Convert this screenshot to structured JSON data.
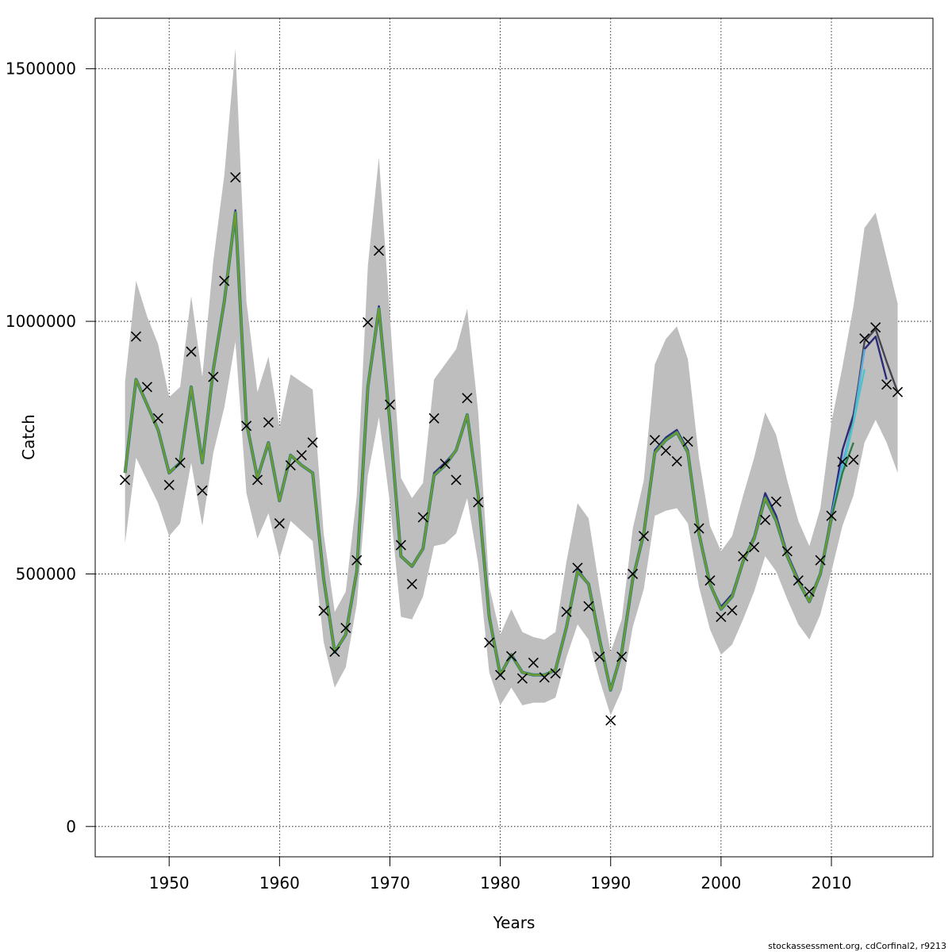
{
  "chart_data": {
    "type": "line",
    "xlabel": "Years",
    "ylabel": "Catch",
    "credit": "stockassessment.org, cdCorfinal2, r9213",
    "xlim": [
      1943.3,
      2019.2
    ],
    "ylim": [
      -60000,
      1600000
    ],
    "x_ticks": [
      1950,
      1960,
      1970,
      1980,
      1990,
      2000,
      2010
    ],
    "y_ticks": [
      0,
      500000,
      1000000,
      1500000
    ],
    "y_tick_labels": [
      "0",
      "500000",
      "1000000",
      "1500000"
    ],
    "grid": true,
    "colors": {
      "band": "#bebebe",
      "main": "#6e9b2a",
      "main_under": "#2e7d8c",
      "retro_2015": "#45454f",
      "retro_2014": "#2b2b78",
      "retro_2013": "#5aa9e0",
      "retro_2012": "#2e7d46",
      "retro_2011": "#4ec3c8",
      "observed": "#000000"
    },
    "observed": {
      "x": [
        1946,
        1947,
        1948,
        1949,
        1950,
        1951,
        1952,
        1953,
        1954,
        1955,
        1956,
        1957,
        1958,
        1959,
        1960,
        1961,
        1962,
        1963,
        1964,
        1965,
        1966,
        1967,
        1968,
        1969,
        1970,
        1971,
        1972,
        1973,
        1974,
        1975,
        1976,
        1977,
        1978,
        1979,
        1980,
        1981,
        1982,
        1983,
        1984,
        1985,
        1986,
        1987,
        1988,
        1989,
        1990,
        1991,
        1992,
        1993,
        1994,
        1995,
        1996,
        1997,
        1998,
        1999,
        2000,
        2001,
        2002,
        2003,
        2004,
        2005,
        2006,
        2007,
        2008,
        2009,
        2010,
        2011,
        2012,
        2013,
        2014,
        2015,
        2016
      ],
      "y": [
        686000,
        970000,
        870000,
        808000,
        676000,
        720000,
        940000,
        665000,
        890000,
        1080000,
        1285000,
        793000,
        686000,
        800000,
        600000,
        715000,
        735000,
        760000,
        427000,
        346000,
        393000,
        527000,
        998000,
        1140000,
        835000,
        557000,
        480000,
        612000,
        808000,
        718000,
        686000,
        848000,
        642000,
        364000,
        300000,
        337000,
        293000,
        324000,
        295000,
        303000,
        425000,
        512000,
        436000,
        336000,
        210000,
        336000,
        500000,
        575000,
        765000,
        744000,
        723000,
        762000,
        590000,
        487000,
        415000,
        428000,
        535000,
        553000,
        607000,
        643000,
        545000,
        487000,
        465000,
        527000,
        615000,
        722000,
        726000,
        966000,
        988000,
        875000,
        860000
      ]
    },
    "band": {
      "x": [
        1946,
        1947,
        1948,
        1949,
        1950,
        1951,
        1952,
        1953,
        1954,
        1955,
        1956,
        1957,
        1958,
        1959,
        1960,
        1961,
        1962,
        1963,
        1964,
        1965,
        1966,
        1967,
        1968,
        1969,
        1970,
        1971,
        1972,
        1973,
        1974,
        1975,
        1976,
        1977,
        1978,
        1979,
        1980,
        1981,
        1982,
        1983,
        1984,
        1985,
        1986,
        1987,
        1988,
        1989,
        1990,
        1991,
        1992,
        1993,
        1994,
        1995,
        1996,
        1997,
        1998,
        1999,
        2000,
        2001,
        2002,
        2003,
        2004,
        2005,
        2006,
        2007,
        2008,
        2009,
        2010,
        2011,
        2012,
        2013,
        2014,
        2015,
        2016
      ],
      "upper": [
        880000,
        1080000,
        1010000,
        955000,
        850000,
        870000,
        1050000,
        890000,
        1120000,
        1290000,
        1540000,
        1040000,
        860000,
        930000,
        790000,
        895000,
        880000,
        865000,
        580000,
        425000,
        465000,
        655000,
        1110000,
        1325000,
        1010000,
        690000,
        650000,
        680000,
        885000,
        915000,
        945000,
        1025000,
        820000,
        475000,
        380000,
        430000,
        385000,
        375000,
        370000,
        385000,
        525000,
        640000,
        610000,
        470000,
        345000,
        410000,
        590000,
        685000,
        915000,
        965000,
        990000,
        925000,
        730000,
        595000,
        545000,
        575000,
        655000,
        730000,
        820000,
        775000,
        685000,
        605000,
        555000,
        630000,
        800000,
        910000,
        1030000,
        1185000,
        1215000,
        1125000,
        1035000
      ],
      "lower": [
        560000,
        730000,
        685000,
        640000,
        575000,
        600000,
        720000,
        595000,
        740000,
        830000,
        960000,
        660000,
        570000,
        620000,
        530000,
        605000,
        585000,
        565000,
        365000,
        275000,
        315000,
        440000,
        695000,
        810000,
        640000,
        415000,
        410000,
        455000,
        555000,
        560000,
        580000,
        650000,
        520000,
        305000,
        240000,
        275000,
        240000,
        245000,
        245000,
        255000,
        335000,
        400000,
        370000,
        290000,
        220000,
        270000,
        395000,
        470000,
        615000,
        625000,
        630000,
        600000,
        475000,
        390000,
        340000,
        360000,
        410000,
        465000,
        535000,
        505000,
        450000,
        400000,
        370000,
        420000,
        505000,
        595000,
        655000,
        760000,
        805000,
        760000,
        700000
      ]
    },
    "series": [
      {
        "x": [
          1946,
          1947,
          1948,
          1949,
          1950,
          1951,
          1952,
          1953,
          1954,
          1955,
          1956,
          1957,
          1958,
          1959,
          1960,
          1961,
          1962,
          1963,
          1964,
          1965,
          1966,
          1967,
          1968,
          1969,
          1970,
          1971,
          1972,
          1973,
          1974,
          1975,
          1976,
          1977,
          1978,
          1979,
          1980,
          1981,
          1982,
          1983,
          1984,
          1985,
          1986,
          1987,
          1988,
          1989,
          1990,
          1991,
          1992,
          1993,
          1994,
          1995,
          1996,
          1997,
          1998,
          1999,
          2000,
          2001,
          2002,
          2003,
          2004,
          2005,
          2006,
          2007,
          2008,
          2009,
          2010,
          2011,
          2012,
          2013,
          2014,
          2015
        ],
        "values": [
          705000,
          885000,
          835000,
          785000,
          700000,
          720000,
          870000,
          720000,
          905000,
          1040000,
          1220000,
          800000,
          690000,
          760000,
          645000,
          735000,
          715000,
          700000,
          490000,
          345000,
          380000,
          505000,
          870000,
          1030000,
          800000,
          535000,
          515000,
          550000,
          700000,
          720000,
          745000,
          815000,
          655000,
          415000,
          300000,
          340000,
          305000,
          300000,
          300000,
          310000,
          395000,
          510000,
          480000,
          370000,
          270000,
          345000,
          490000,
          580000,
          745000,
          770000,
          785000,
          745000,
          580000,
          480000,
          435000,
          460000,
          525000,
          575000,
          660000,
          615000,
          540000,
          490000,
          445000,
          500000,
          620000,
          745000,
          815000,
          945000,
          970000,
          885000
        ],
        "color_key": "retro_2014"
      },
      {
        "x": [
          2010,
          2011,
          2012,
          2013,
          2014,
          2015,
          2016
        ],
        "values": [
          615000,
          715000,
          805000,
          960000,
          985000,
          920000,
          860000
        ],
        "color_key": "retro_2015"
      },
      {
        "x": [
          2010,
          2011,
          2012,
          2013
        ],
        "values": [
          615000,
          720000,
          800000,
          945000
        ],
        "color_key": "retro_2013"
      },
      {
        "x": [
          2010,
          2011,
          2012,
          2013
        ],
        "values": [
          610000,
          705000,
          800000,
          905000
        ],
        "color_key": "retro_2011"
      },
      {
        "x": [
          1946,
          1947,
          1948,
          1949,
          1950,
          1951,
          1952,
          1953,
          1954,
          1955,
          1956,
          1957,
          1958,
          1959,
          1960,
          1961,
          1962,
          1963,
          1964,
          1965,
          1966,
          1967,
          1968,
          1969,
          1970,
          1971,
          1972,
          1973,
          1974,
          1975,
          1976,
          1977,
          1978,
          1979,
          1980,
          1981,
          1982,
          1983,
          1984,
          1985,
          1986,
          1987,
          1988,
          1989,
          1990,
          1991,
          1992,
          1993,
          1994,
          1995,
          1996,
          1997,
          1998,
          1999,
          2000,
          2001,
          2002,
          2003,
          2004,
          2005,
          2006,
          2007,
          2008,
          2009,
          2010,
          2011,
          2012
        ],
        "values": [
          700000,
          885000,
          835000,
          785000,
          700000,
          720000,
          870000,
          720000,
          905000,
          1040000,
          1215000,
          800000,
          690000,
          760000,
          645000,
          735000,
          715000,
          700000,
          490000,
          345000,
          380000,
          505000,
          870000,
          1025000,
          800000,
          535000,
          515000,
          550000,
          695000,
          715000,
          745000,
          815000,
          655000,
          415000,
          300000,
          340000,
          305000,
          300000,
          300000,
          310000,
          395000,
          505000,
          480000,
          370000,
          270000,
          345000,
          490000,
          580000,
          740000,
          765000,
          780000,
          740000,
          580000,
          480000,
          430000,
          455000,
          525000,
          570000,
          650000,
          605000,
          535000,
          485000,
          445000,
          500000,
          610000,
          700000,
          760000
        ],
        "color_key": "retro_2012"
      },
      {
        "x": [
          1946,
          1947,
          1948,
          1949,
          1950,
          1951,
          1952,
          1953,
          1954,
          1955,
          1956,
          1957,
          1958,
          1959,
          1960,
          1961,
          1962,
          1963,
          1964,
          1965,
          1966,
          1967,
          1968,
          1969,
          1970,
          1971,
          1972,
          1973,
          1974,
          1975,
          1976,
          1977,
          1978,
          1979,
          1980,
          1981,
          1982,
          1983,
          1984,
          1985,
          1986,
          1987,
          1988,
          1989,
          1990,
          1991,
          1992,
          1993,
          1994,
          1995,
          1996,
          1997,
          1998,
          1999,
          2000,
          2001,
          2002,
          2003,
          2004,
          2005,
          2006,
          2007,
          2008,
          2009,
          2010
        ],
        "values": [
          700000,
          885000,
          835000,
          785000,
          700000,
          720000,
          870000,
          720000,
          905000,
          1040000,
          1215000,
          800000,
          690000,
          760000,
          645000,
          735000,
          715000,
          700000,
          490000,
          345000,
          380000,
          505000,
          870000,
          1025000,
          800000,
          535000,
          515000,
          550000,
          695000,
          715000,
          745000,
          815000,
          655000,
          415000,
          300000,
          340000,
          305000,
          300000,
          300000,
          310000,
          395000,
          505000,
          480000,
          370000,
          270000,
          345000,
          490000,
          580000,
          740000,
          765000,
          780000,
          740000,
          580000,
          480000,
          430000,
          455000,
          525000,
          570000,
          650000,
          605000,
          535000,
          485000,
          445000,
          500000,
          610000
        ],
        "color_key": "main"
      }
    ]
  }
}
